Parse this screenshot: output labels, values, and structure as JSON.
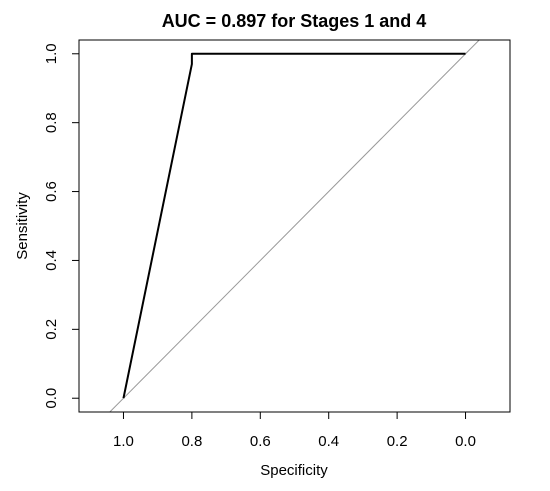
{
  "chart_data": {
    "type": "line",
    "title": "AUC = 0.897 for Stages 1 and 4",
    "xlabel": "Specificity",
    "ylabel": "Sensitivity",
    "x_reversed": true,
    "xlim": [
      1.13,
      -0.13
    ],
    "ylim": [
      -0.04,
      1.04
    ],
    "x_ticks": [
      1.0,
      0.8,
      0.6,
      0.4,
      0.2,
      0.0
    ],
    "x_tick_labels": [
      "1.0",
      "0.8",
      "0.6",
      "0.4",
      "0.2",
      "0.0"
    ],
    "y_ticks": [
      0.0,
      0.2,
      0.4,
      0.6,
      0.8,
      1.0
    ],
    "y_tick_labels": [
      "0.0",
      "0.2",
      "0.4",
      "0.6",
      "0.8",
      "1.0"
    ],
    "grid": false,
    "series": [
      {
        "x": [
          1.0,
          0.8,
          0.8,
          0.0
        ],
        "y": [
          0.0,
          0.97,
          1.0,
          1.0
        ],
        "color": "#000000"
      }
    ],
    "reference_line": {
      "x": [
        1.0,
        0.0
      ],
      "y": [
        0.0,
        1.0
      ],
      "color": "#999999"
    }
  }
}
